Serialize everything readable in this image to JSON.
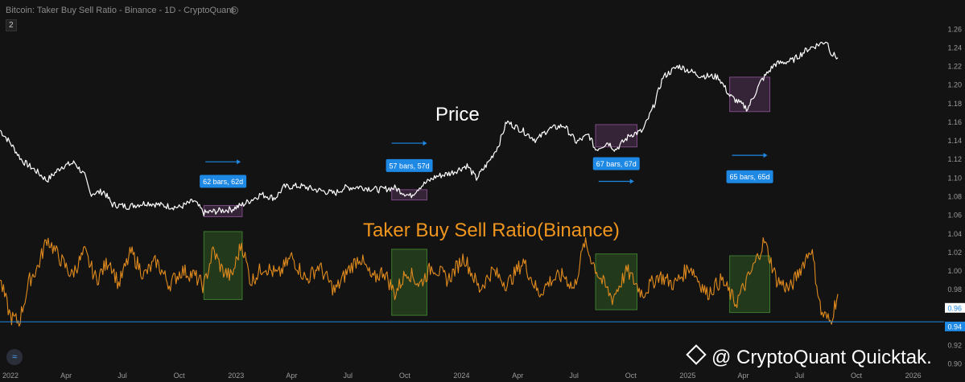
{
  "header": {
    "title": "Bitcoin: Taker Buy Sell Ratio - Binance - 1D - CryptoQuant",
    "badge": "2"
  },
  "watermark": {
    "text": "@ CryptoQuant Quicktak."
  },
  "annotations": {
    "price_label": "Price",
    "ratio_label": "Taker Buy Sell Ratio(Binance)",
    "bar_labels": [
      "62 bars, 62d",
      "57 bars, 57d",
      "67 bars, 67d",
      "65 bars, 65d"
    ]
  },
  "colors": {
    "background": "#131313",
    "price_line": "#ffffff",
    "ratio_line": "#e08a1e",
    "ratio_label": "#f0961e",
    "accent_blue": "#1e88e5",
    "purple_box": "#7e4a86",
    "green_box": "#3c7a2e",
    "axis_text": "#9b9b9b"
  },
  "chart_data": {
    "type": "line",
    "x_tick_labels": [
      "2022",
      "Apr",
      "Jul",
      "Oct",
      "2023",
      "Apr",
      "Jul",
      "Oct",
      "2024",
      "Apr",
      "Jul",
      "Oct",
      "2025",
      "Apr",
      "Jul",
      "Oct",
      "2026"
    ],
    "y_tick_labels": [
      "1.26",
      "1.24",
      "1.22",
      "1.20",
      "1.18",
      "1.16",
      "1.14",
      "1.12",
      "1.10",
      "1.08",
      "1.06",
      "1.04",
      "1.02",
      "1.00",
      "0.98",
      "0.96",
      "0.94",
      "0.92",
      "0.90"
    ],
    "y_range": [
      0.895,
      1.265
    ],
    "price_axis_labels": [],
    "current_value_tags": [
      "0.96",
      "0.94"
    ],
    "reference_line": 0.945,
    "series": [
      {
        "name": "Price",
        "x": [
          "2021-12-15",
          "2022-01-01",
          "2022-01-20",
          "2022-02-10",
          "2022-03-01",
          "2022-03-25",
          "2022-04-15",
          "2022-05-01",
          "2022-05-10",
          "2022-06-01",
          "2022-06-15",
          "2022-07-10",
          "2022-08-10",
          "2022-09-05",
          "2022-10-01",
          "2022-10-25",
          "2022-11-10",
          "2022-12-01",
          "2022-12-25",
          "2023-01-15",
          "2023-02-10",
          "2023-03-05",
          "2023-03-20",
          "2023-04-15",
          "2023-05-10",
          "2023-06-10",
          "2023-06-25",
          "2023-07-20",
          "2023-08-20",
          "2023-09-15",
          "2023-10-10",
          "2023-10-25",
          "2023-11-20",
          "2023-12-15",
          "2024-01-10",
          "2024-01-25",
          "2024-02-15",
          "2024-03-01",
          "2024-03-14",
          "2024-04-10",
          "2024-05-01",
          "2024-05-20",
          "2024-06-15",
          "2024-07-05",
          "2024-07-25",
          "2024-08-05",
          "2024-08-25",
          "2024-09-06",
          "2024-09-30",
          "2024-10-20",
          "2024-11-06",
          "2024-11-22",
          "2024-12-17",
          "2025-01-20",
          "2025-02-20",
          "2025-03-10",
          "2025-04-08",
          "2025-04-30",
          "2025-05-22",
          "2025-06-20",
          "2025-07-14",
          "2025-08-14",
          "2025-08-22",
          "2025-09-01"
        ],
        "values": [
          1.151,
          1.137,
          1.118,
          1.108,
          1.097,
          1.112,
          1.116,
          1.102,
          1.083,
          1.085,
          1.071,
          1.069,
          1.073,
          1.07,
          1.068,
          1.075,
          1.062,
          1.064,
          1.066,
          1.072,
          1.082,
          1.078,
          1.09,
          1.091,
          1.087,
          1.083,
          1.089,
          1.09,
          1.087,
          1.089,
          1.08,
          1.09,
          1.101,
          1.105,
          1.113,
          1.099,
          1.118,
          1.135,
          1.16,
          1.15,
          1.14,
          1.152,
          1.156,
          1.138,
          1.146,
          1.13,
          1.138,
          1.13,
          1.146,
          1.15,
          1.175,
          1.208,
          1.22,
          1.21,
          1.208,
          1.188,
          1.174,
          1.204,
          1.222,
          1.226,
          1.238,
          1.247,
          1.233,
          1.229
        ]
      },
      {
        "name": "Taker Buy Sell Ratio(Binance)",
        "x": [
          "2021-12-15",
          "2022-01-01",
          "2022-01-15",
          "2022-02-01",
          "2022-02-15",
          "2022-03-01",
          "2022-03-20",
          "2022-04-10",
          "2022-05-01",
          "2022-05-20",
          "2022-06-10",
          "2022-06-25",
          "2022-07-15",
          "2022-08-05",
          "2022-08-25",
          "2022-09-15",
          "2022-10-05",
          "2022-10-25",
          "2022-11-10",
          "2022-11-25",
          "2022-12-10",
          "2022-12-25",
          "2023-01-10",
          "2023-01-25",
          "2023-02-15",
          "2023-03-10",
          "2023-04-01",
          "2023-04-25",
          "2023-05-15",
          "2023-06-10",
          "2023-07-01",
          "2023-07-20",
          "2023-08-10",
          "2023-08-28",
          "2023-09-15",
          "2023-10-05",
          "2023-10-25",
          "2023-11-15",
          "2023-12-10",
          "2024-01-05",
          "2024-01-30",
          "2024-02-20",
          "2024-03-15",
          "2024-04-10",
          "2024-05-05",
          "2024-05-25",
          "2024-06-15",
          "2024-07-01",
          "2024-07-18",
          "2024-08-10",
          "2024-09-01",
          "2024-09-25",
          "2024-10-20",
          "2024-11-15",
          "2024-12-10",
          "2025-01-05",
          "2025-02-01",
          "2025-02-25",
          "2025-03-20",
          "2025-04-15",
          "2025-05-05",
          "2025-05-25",
          "2025-06-15",
          "2025-07-05",
          "2025-07-20",
          "2025-08-05",
          "2025-08-20",
          "2025-09-01"
        ],
        "values": [
          0.99,
          0.95,
          0.945,
          0.99,
          1.005,
          1.035,
          1.015,
          0.995,
          1.02,
          0.99,
          1.012,
          0.985,
          1.02,
          0.995,
          1.01,
          0.985,
          1.0,
          0.995,
          0.983,
          1.022,
          1.0,
          0.993,
          1.03,
          0.988,
          1.005,
          0.995,
          1.015,
          0.99,
          1.005,
          0.978,
          1.0,
          1.015,
          0.99,
          1.0,
          0.975,
          1.0,
          0.985,
          1.005,
          0.99,
          1.015,
          0.98,
          1.0,
          0.985,
          1.01,
          0.975,
          0.99,
          0.995,
          0.98,
          1.03,
          0.995,
          0.97,
          1.0,
          0.975,
          0.995,
          0.985,
          1.005,
          0.975,
          0.99,
          0.965,
          1.0,
          1.032,
          0.99,
          0.98,
          1.005,
          1.025,
          0.955,
          0.945,
          0.975
        ]
      }
    ],
    "annotations": [
      {
        "type": "box",
        "series": "Price",
        "label": "62 bars, 62d",
        "x": [
          "2022-11-10",
          "2023-01-11"
        ],
        "y": [
          1.058,
          1.07
        ]
      },
      {
        "type": "box",
        "series": "Price",
        "label": "57 bars, 57d",
        "x": [
          "2023-09-10",
          "2023-11-06"
        ],
        "y": [
          1.076,
          1.087
        ]
      },
      {
        "type": "box",
        "series": "Price",
        "label": "67 bars, 67d",
        "x": [
          "2024-08-05",
          "2024-10-11"
        ],
        "y": [
          1.133,
          1.157
        ]
      },
      {
        "type": "box",
        "series": "Price",
        "label": "65 bars, 65d",
        "x": [
          "2025-03-10",
          "2025-05-14"
        ],
        "y": [
          1.171,
          1.208
        ]
      },
      {
        "type": "box",
        "series": "Taker Buy Sell Ratio(Binance)",
        "x": [
          "2022-11-10",
          "2023-01-11"
        ],
        "y": [
          0.969,
          1.042
        ]
      },
      {
        "type": "box",
        "series": "Taker Buy Sell Ratio(Binance)",
        "x": [
          "2023-09-10",
          "2023-11-06"
        ],
        "y": [
          0.952,
          1.023
        ]
      },
      {
        "type": "box",
        "series": "Taker Buy Sell Ratio(Binance)",
        "x": [
          "2024-08-05",
          "2024-10-11"
        ],
        "y": [
          0.958,
          1.018
        ]
      },
      {
        "type": "box",
        "series": "Taker Buy Sell Ratio(Binance)",
        "x": [
          "2025-03-10",
          "2025-05-14"
        ],
        "y": [
          0.955,
          1.016
        ]
      }
    ],
    "grid": false,
    "ylim": [
      0.895,
      1.265
    ]
  }
}
